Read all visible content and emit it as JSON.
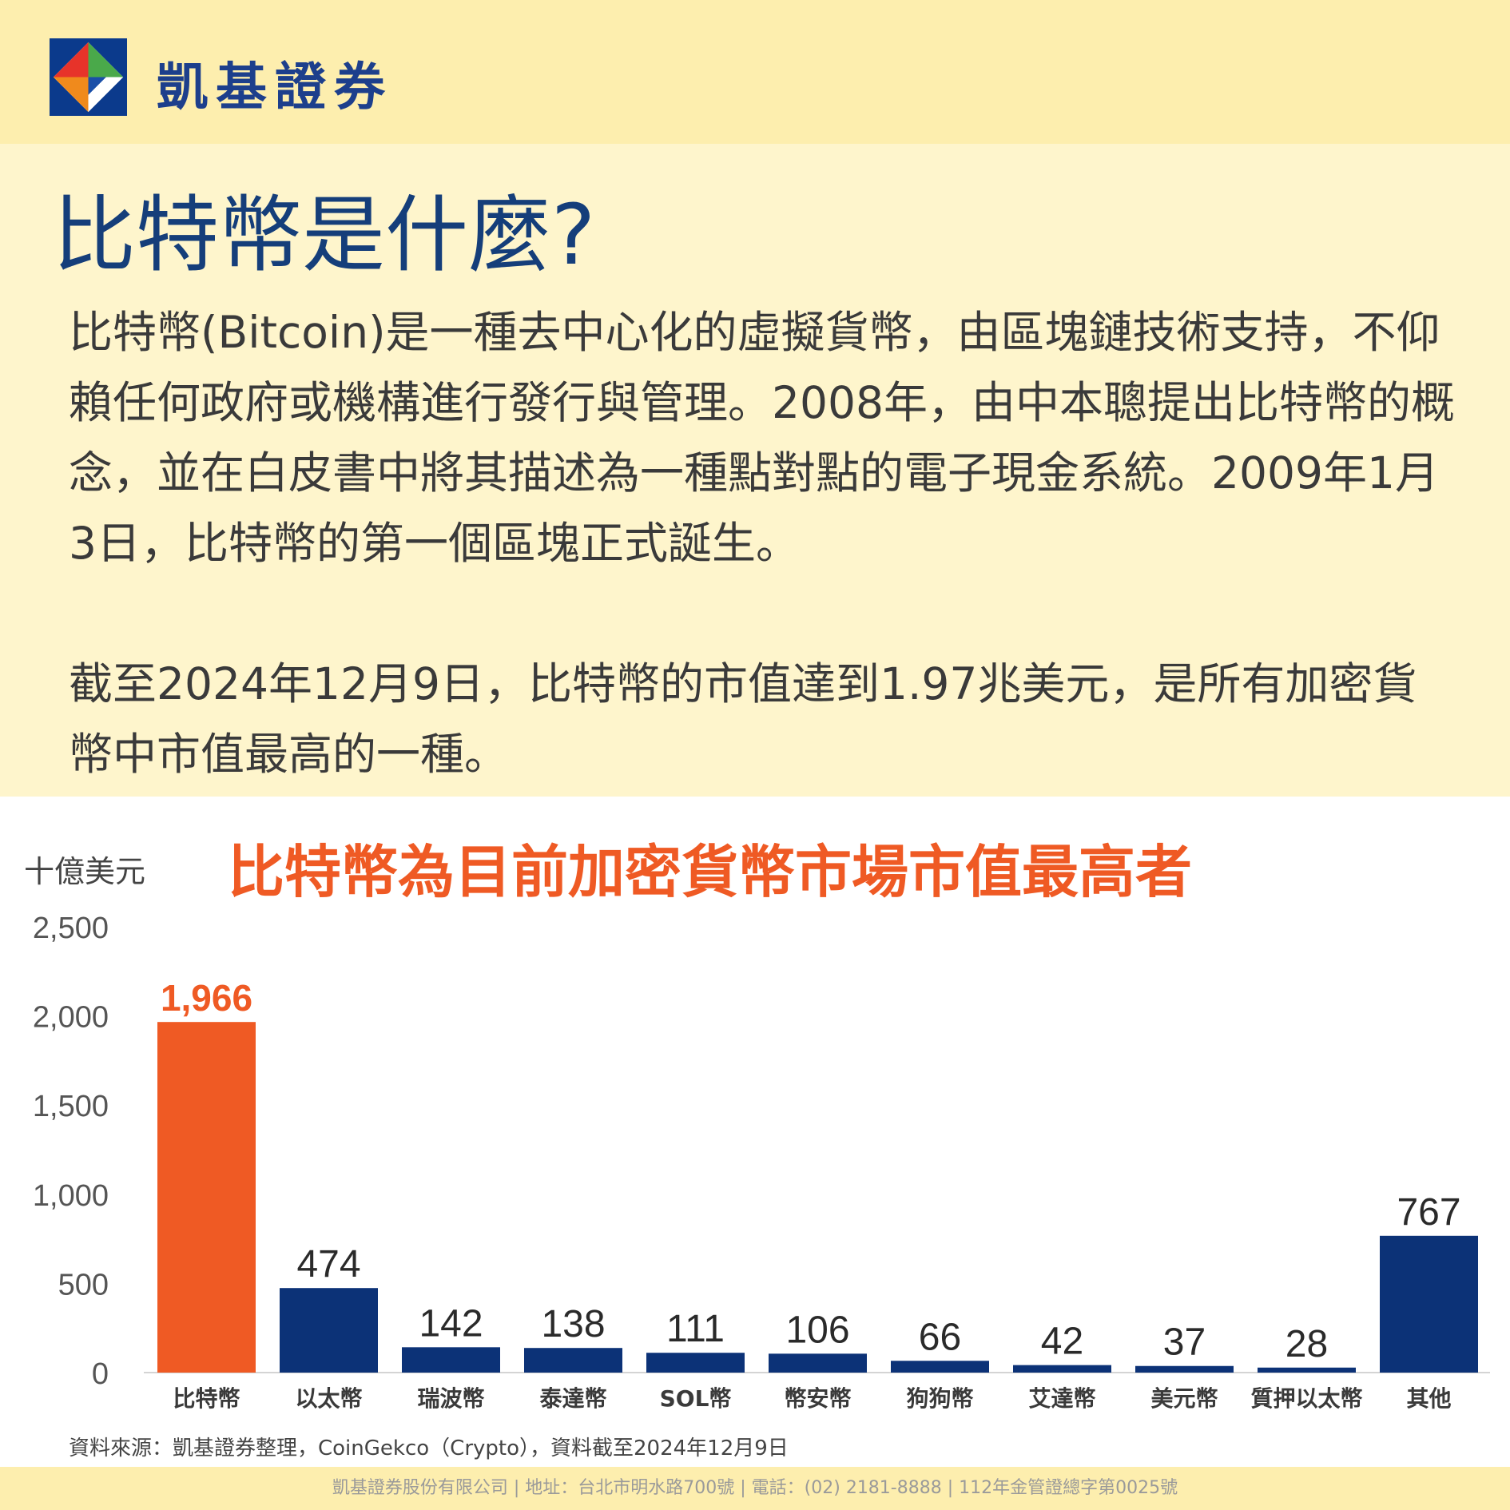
{
  "brand": {
    "name": "凱基證券",
    "logo_icon": "kgi-diamond-logo-icon"
  },
  "colors": {
    "header_bg": "#fdeeae",
    "intro_bg": "#fef5cc",
    "title_blue": "#153e7a",
    "accent_orange": "#ef5a24",
    "bar_blue": "#0c3277"
  },
  "intro": {
    "title": "比特幣是什麼?",
    "paragraph1": "比特幣(Bitcoin)是一種去中心化的虛擬貨幣，由區塊鏈技術支持，不仰賴任何政府或機構進行發行與管理。2008年，由中本聰提出比特幣的概念，並在白皮書中將其描述為一種點對點的電子現金系統。2009年1月3日，比特幣的第一個區塊正式誕生。",
    "paragraph2": "截至2024年12月9日，比特幣的市值達到1.97兆美元，是所有加密貨幣中市值最高的一種。"
  },
  "chart_data": {
    "type": "bar",
    "title": "比特幣為目前加密貨幣市場市值最高者",
    "ylabel": "十億美元",
    "ylim": [
      0,
      2500
    ],
    "yticks": [
      0,
      500,
      1000,
      1500,
      2000,
      2500
    ],
    "ytick_labels": [
      "0",
      "500",
      "1,000",
      "1,500",
      "2,000",
      "2,500"
    ],
    "grid": false,
    "legend": "none",
    "categories": [
      "比特幣",
      "以太幣",
      "瑞波幣",
      "泰達幣",
      "SOL幣",
      "幣安幣",
      "狗狗幣",
      "艾達幣",
      "美元幣",
      "質押以太幣",
      "其他"
    ],
    "values": [
      1966,
      474,
      142,
      138,
      111,
      106,
      66,
      42,
      37,
      28,
      767
    ],
    "value_labels": [
      "1,966",
      "474",
      "142",
      "138",
      "111",
      "106",
      "66",
      "42",
      "37",
      "28",
      "767"
    ],
    "highlight_index": 0
  },
  "source": "資料來源：凱基證券整理，CoinGekco（Crypto），資料截至2024年12月9日",
  "footer": "凱基證券股份有限公司 | 地址：台北市明水路700號 | 電話：(02) 2181-8888 | 112年金管證總字第0025號"
}
